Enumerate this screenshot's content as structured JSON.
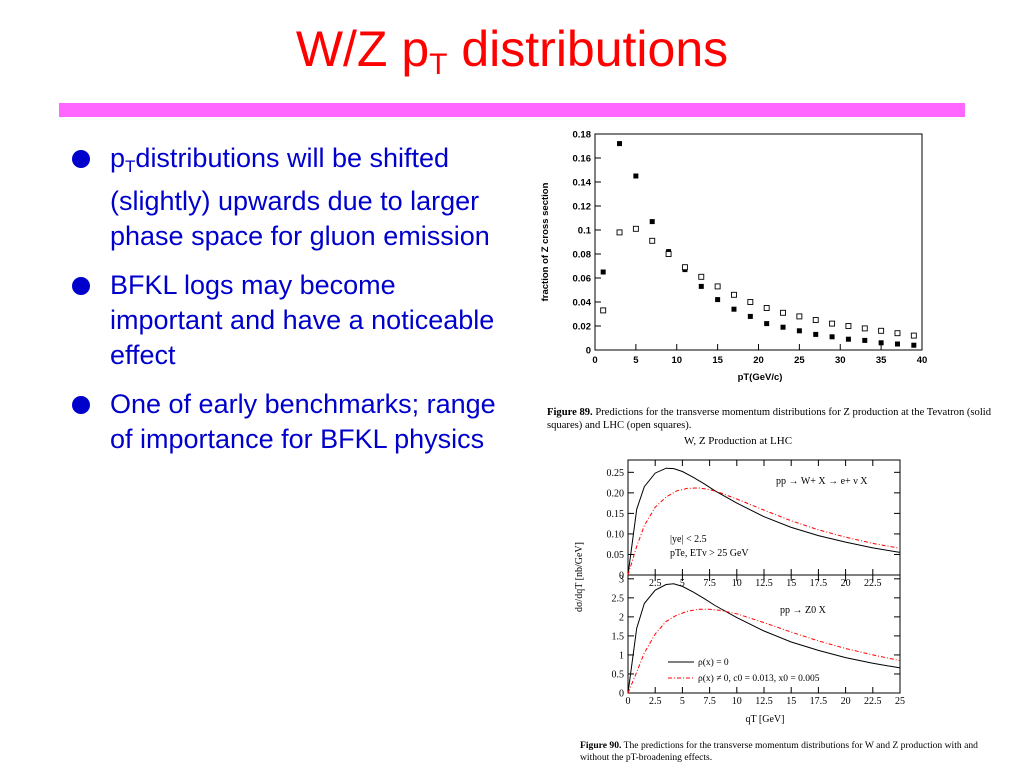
{
  "title": {
    "main": "W/Z p",
    "sub": "T",
    "rest": " distributions"
  },
  "bullets": [
    {
      "pre": "p",
      "sub": "T",
      "text": "distributions will be shifted (slightly) upwards due to larger phase space for gluon emission"
    },
    {
      "pre": "",
      "sub": "",
      "text": "BFKL logs may become important and have a noticeable effect"
    },
    {
      "pre": "",
      "sub": "",
      "text": "One of early benchmarks; range of importance for BFKL physics"
    }
  ],
  "colors": {
    "title": "#ff0000",
    "rule": "#ff66ff",
    "bullet_text": "#0000cc",
    "curve_red": "#ff0000",
    "curve_black": "#000000"
  },
  "figure89": {
    "label": "Figure 89.",
    "caption": "Predictions for the transverse momentum distributions for Z production at the Tevatron (solid squares) and LHC (open squares)."
  },
  "figure90": {
    "label": "Figure 90.",
    "caption": "The predictions for the transverse momentum distributions for W and Z production with and without the pT-broadening effects."
  },
  "chart_data": [
    {
      "type": "scatter",
      "ylabel": "fraction of Z cross section",
      "xlabel": "pT(GeV/c)",
      "xlim": [
        0,
        40
      ],
      "ylim": [
        0,
        0.18
      ],
      "xticks": [
        0,
        5,
        10,
        15,
        20,
        25,
        30,
        35,
        40
      ],
      "yticks": [
        0,
        0.02,
        0.04,
        0.06,
        0.08,
        0.1,
        0.12,
        0.14,
        0.16,
        0.18
      ],
      "ytick_labels": [
        "0",
        "0.02",
        "0.04",
        "0.06",
        "0.08",
        "0.1",
        "0.12",
        "0.14",
        "0.16",
        "0.18"
      ],
      "series": [
        {
          "marker": "solid-square",
          "x": [
            1,
            3,
            5,
            7,
            9,
            11,
            13,
            15,
            17,
            19,
            21,
            23,
            25,
            27,
            29,
            31,
            33,
            35,
            37,
            39
          ],
          "y": [
            0.065,
            0.172,
            0.145,
            0.107,
            0.082,
            0.067,
            0.053,
            0.042,
            0.034,
            0.028,
            0.022,
            0.019,
            0.016,
            0.013,
            0.011,
            0.009,
            0.008,
            0.006,
            0.005,
            0.004
          ]
        },
        {
          "marker": "open-square",
          "x": [
            1,
            3,
            5,
            7,
            9,
            11,
            13,
            15,
            17,
            19,
            21,
            23,
            25,
            27,
            29,
            31,
            33,
            35,
            37,
            39
          ],
          "y": [
            0.033,
            0.098,
            0.101,
            0.091,
            0.08,
            0.069,
            0.061,
            0.053,
            0.046,
            0.04,
            0.035,
            0.031,
            0.028,
            0.025,
            0.022,
            0.02,
            0.018,
            0.016,
            0.014,
            0.012
          ]
        }
      ]
    },
    {
      "type": "line",
      "title": "W, Z Production at LHC",
      "ylabel": "dσ/dqT [nb/GeV]",
      "xlabel": "qT [GeV]",
      "panels": [
        {
          "name": "W",
          "process": "pp → W+ X → e+ ν X",
          "cuts": [
            "|ye| < 2.5",
            "pTe, ETν > 25 GeV"
          ],
          "xlim": [
            0,
            25
          ],
          "ylim": [
            0,
            0.28
          ],
          "xticks": [
            2.5,
            5,
            7.5,
            10,
            12.5,
            15,
            17.5,
            20,
            22.5
          ],
          "yticks": [
            0,
            0.05,
            0.1,
            0.15,
            0.2,
            0.25
          ],
          "ytick_labels": [
            "0",
            "0.05",
            "0.10",
            "0.15",
            "0.20",
            "0.25"
          ],
          "series": [
            {
              "style": "solid-black",
              "x": [
                0,
                0.8,
                1.5,
                2.5,
                3.5,
                4.2,
                5,
                6,
                7,
                8,
                10,
                12.5,
                15,
                17.5,
                20,
                22.5,
                25
              ],
              "y": [
                0,
                0.16,
                0.215,
                0.248,
                0.26,
                0.259,
                0.252,
                0.238,
                0.222,
                0.205,
                0.175,
                0.142,
                0.116,
                0.096,
                0.08,
                0.066,
                0.055
              ]
            },
            {
              "style": "dashdot-red",
              "x": [
                0,
                0.8,
                1.5,
                2.5,
                3.5,
                4.5,
                5.5,
                6.5,
                7.5,
                8.5,
                10,
                12.5,
                15,
                17.5,
                20,
                22.5,
                25
              ],
              "y": [
                0,
                0.07,
                0.12,
                0.165,
                0.19,
                0.205,
                0.211,
                0.212,
                0.208,
                0.2,
                0.185,
                0.158,
                0.132,
                0.11,
                0.092,
                0.077,
                0.065
              ]
            }
          ]
        },
        {
          "name": "Z",
          "process": "pp → Z0 X",
          "xlim": [
            0,
            25
          ],
          "ylim": [
            0,
            3.1
          ],
          "xticks": [
            0,
            2.5,
            5,
            7.5,
            10,
            12.5,
            15,
            17.5,
            20,
            22.5,
            25
          ],
          "yticks": [
            0,
            0.5,
            1,
            1.5,
            2,
            2.5,
            3
          ],
          "ytick_labels": [
            "0",
            "0.5",
            "1",
            "1.5",
            "2",
            "2.5",
            "3"
          ],
          "series": [
            {
              "style": "solid-black",
              "x": [
                0,
                0.8,
                1.5,
                2.5,
                3.5,
                4.2,
                5,
                6,
                7,
                8,
                10,
                12.5,
                15,
                17.5,
                20,
                22.5,
                25
              ],
              "y": [
                0,
                1.7,
                2.35,
                2.7,
                2.85,
                2.87,
                2.8,
                2.65,
                2.48,
                2.3,
                1.98,
                1.63,
                1.34,
                1.12,
                0.93,
                0.78,
                0.66
              ]
            },
            {
              "style": "dashdot-red",
              "x": [
                0,
                0.8,
                1.5,
                2.5,
                3.5,
                4.5,
                5.5,
                6.5,
                7.5,
                8.5,
                10,
                12.5,
                15,
                17.5,
                20,
                22.5,
                25
              ],
              "y": [
                0,
                0.55,
                1.05,
                1.55,
                1.88,
                2.05,
                2.15,
                2.2,
                2.2,
                2.17,
                2.08,
                1.85,
                1.6,
                1.37,
                1.17,
                1.0,
                0.85
              ]
            }
          ],
          "legend": [
            {
              "style": "solid-black",
              "label": "ρ(x) = 0"
            },
            {
              "style": "dashdot-red",
              "label": "ρ(x) ≠ 0,  c0 = 0.013,  x0 = 0.005"
            }
          ]
        }
      ]
    }
  ]
}
